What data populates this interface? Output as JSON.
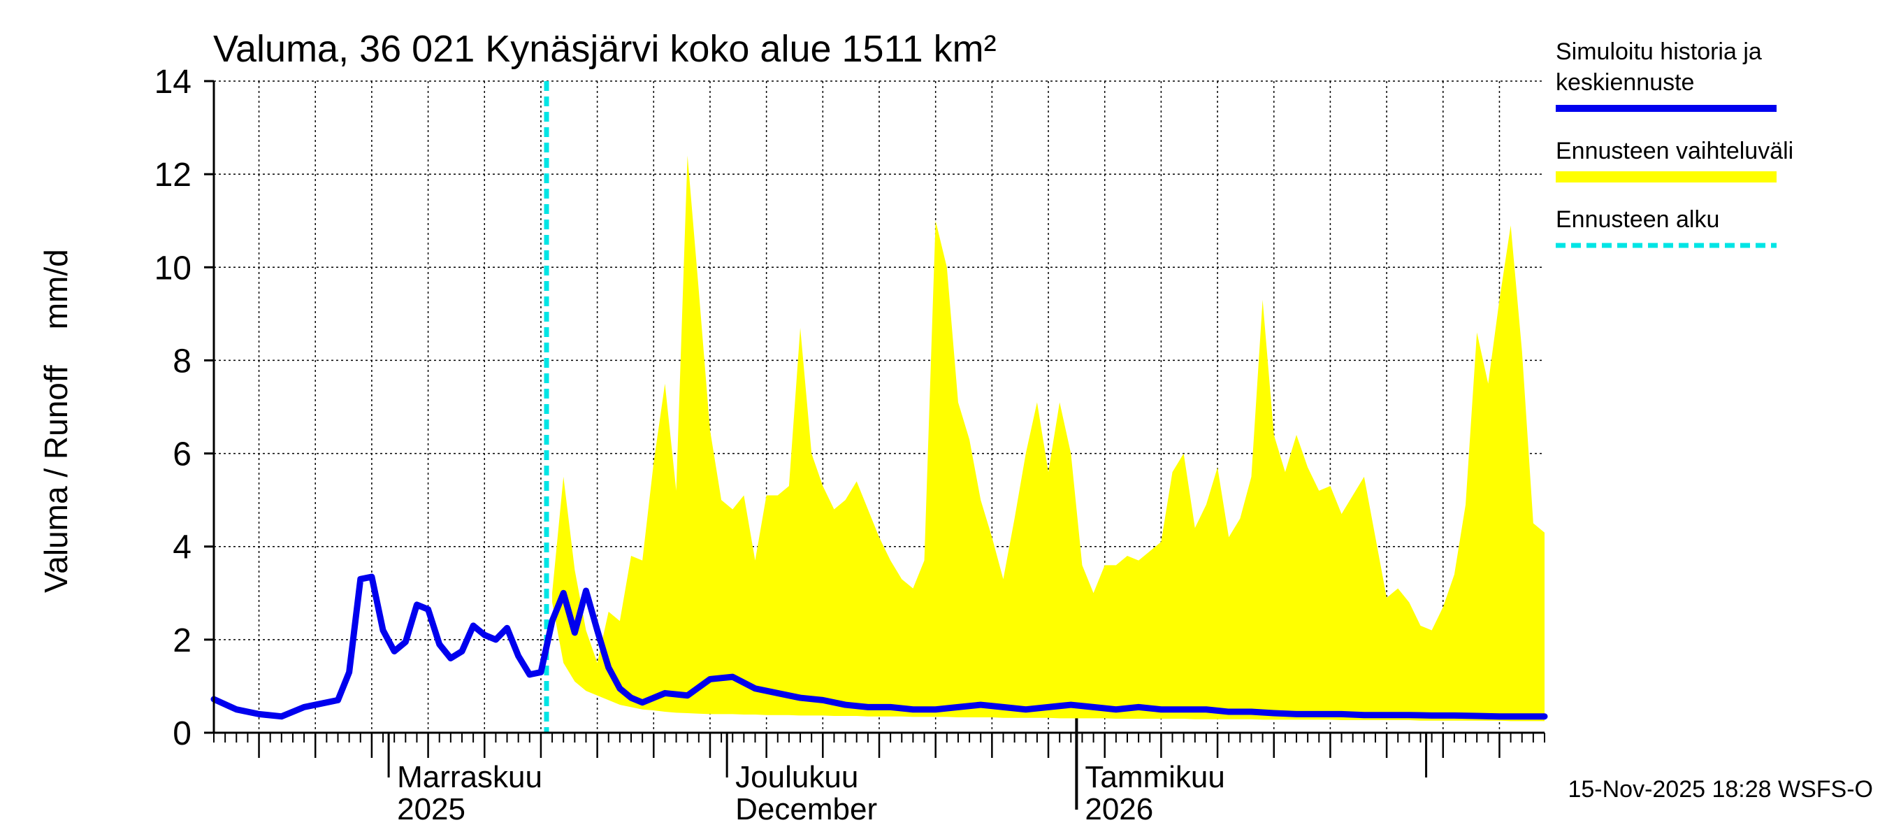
{
  "chart_data": {
    "type": "area",
    "title": "Valuma, 36 021 Kynäsjärvi koko alue 1511 km²",
    "ylabel": "Valuma / Runoff    mm/d",
    "xlabel": "",
    "ylim": [
      0,
      14
    ],
    "y_ticks": [
      0,
      2,
      4,
      6,
      8,
      10,
      12,
      14
    ],
    "y_tick_labels": [
      "0",
      "2",
      "4",
      "6",
      "8",
      "10",
      "12",
      "14"
    ],
    "grid": true,
    "x_range_days": [
      0,
      118
    ],
    "x_labels": [
      {
        "line1": "Marraskuu",
        "line2": "2025",
        "day": 15.5
      },
      {
        "line1": "Joulukuu",
        "line2": "December",
        "day": 45.5
      },
      {
        "line1": "Tammikuu",
        "line2": "2026",
        "day": 76.5
      }
    ],
    "month_boundaries_days": [
      15.5,
      45.5,
      76.5,
      107.5
    ],
    "year_boundary_day": 76.5,
    "forecast_start_day": 29.5,
    "series": [
      {
        "name": "Simuloitu historia ja keskiennuste",
        "color": "#0000ee",
        "x": [
          0,
          2,
          4,
          6,
          8,
          9,
          11,
          12,
          13,
          14,
          15,
          16,
          17,
          18,
          19,
          20,
          21,
          22,
          23,
          24,
          25,
          26,
          27,
          28,
          29,
          30,
          31,
          32,
          33,
          34,
          35,
          36,
          37,
          38,
          40,
          42,
          44,
          46,
          48,
          50,
          52,
          54,
          56,
          58,
          60,
          62,
          64,
          66,
          68,
          70,
          72,
          74,
          76,
          78,
          80,
          82,
          84,
          86,
          88,
          90,
          92,
          94,
          96,
          98,
          100,
          102,
          104,
          106,
          108,
          110,
          112,
          114,
          116,
          118
        ],
        "values": [
          0.72,
          0.5,
          0.4,
          0.35,
          0.55,
          0.6,
          0.7,
          1.3,
          3.3,
          3.35,
          2.2,
          1.75,
          1.95,
          2.75,
          2.65,
          1.9,
          1.6,
          1.75,
          2.3,
          2.1,
          2.0,
          2.25,
          1.65,
          1.25,
          1.3,
          2.4,
          3.0,
          2.15,
          3.05,
          2.2,
          1.4,
          0.95,
          0.75,
          0.65,
          0.85,
          0.8,
          1.15,
          1.2,
          0.95,
          0.85,
          0.75,
          0.7,
          0.6,
          0.55,
          0.55,
          0.5,
          0.5,
          0.55,
          0.6,
          0.55,
          0.5,
          0.55,
          0.6,
          0.55,
          0.5,
          0.55,
          0.5,
          0.5,
          0.5,
          0.45,
          0.45,
          0.42,
          0.4,
          0.4,
          0.4,
          0.38,
          0.38,
          0.38,
          0.37,
          0.37,
          0.36,
          0.35,
          0.35,
          0.35
        ]
      },
      {
        "name": "Ennusteen vaihteluväli",
        "color": "#ffff00",
        "x": [
          30,
          31,
          32,
          33,
          34,
          35,
          36,
          37,
          38,
          39,
          40,
          41,
          42,
          43,
          44,
          45,
          46,
          47,
          48,
          49,
          50,
          51,
          52,
          53,
          54,
          55,
          56,
          57,
          58,
          59,
          60,
          61,
          62,
          63,
          64,
          65,
          66,
          67,
          68,
          69,
          70,
          71,
          72,
          73,
          74,
          75,
          76,
          77,
          78,
          79,
          80,
          81,
          82,
          83,
          84,
          85,
          86,
          87,
          88,
          89,
          90,
          91,
          92,
          93,
          94,
          95,
          96,
          97,
          98,
          99,
          100,
          101,
          102,
          103,
          104,
          105,
          106,
          107,
          108,
          109,
          110,
          111,
          112,
          113,
          114,
          115,
          116,
          117,
          118
        ],
        "upper": [
          3.0,
          5.5,
          3.5,
          2.2,
          1.5,
          2.6,
          2.4,
          3.8,
          3.7,
          5.8,
          7.5,
          5.2,
          12.4,
          9.5,
          6.5,
          5.0,
          4.8,
          5.1,
          3.7,
          5.1,
          5.1,
          5.3,
          8.7,
          6.0,
          5.3,
          4.8,
          5.0,
          5.4,
          4.8,
          4.2,
          3.7,
          3.3,
          3.1,
          3.7,
          11.0,
          10.0,
          7.1,
          6.3,
          5.0,
          4.2,
          3.3,
          4.6,
          6.0,
          7.1,
          5.6,
          7.1,
          6.0,
          3.6,
          3.0,
          3.6,
          3.6,
          3.8,
          3.7,
          3.9,
          4.1,
          5.6,
          6.0,
          4.4,
          4.9,
          5.7,
          4.2,
          4.6,
          5.5,
          9.3,
          6.4,
          5.6,
          6.4,
          5.7,
          5.2,
          5.3,
          4.7,
          5.1,
          5.5,
          4.2,
          2.9,
          3.1,
          2.8,
          2.3,
          2.2,
          2.7,
          3.4,
          4.9,
          8.6,
          7.5,
          9.3,
          10.9,
          8.2,
          4.5,
          4.3
        ],
        "lower": [
          2.8,
          1.5,
          1.1,
          0.9,
          0.8,
          0.7,
          0.6,
          0.55,
          0.5,
          0.48,
          0.45,
          0.43,
          0.42,
          0.41,
          0.4,
          0.4,
          0.4,
          0.39,
          0.39,
          0.38,
          0.38,
          0.38,
          0.37,
          0.37,
          0.37,
          0.36,
          0.36,
          0.36,
          0.35,
          0.35,
          0.35,
          0.35,
          0.34,
          0.34,
          0.34,
          0.34,
          0.33,
          0.33,
          0.33,
          0.33,
          0.32,
          0.32,
          0.32,
          0.32,
          0.32,
          0.31,
          0.31,
          0.31,
          0.31,
          0.31,
          0.3,
          0.3,
          0.3,
          0.3,
          0.3,
          0.3,
          0.3,
          0.29,
          0.29,
          0.29,
          0.29,
          0.29,
          0.29,
          0.28,
          0.28,
          0.28,
          0.28,
          0.28,
          0.28,
          0.28,
          0.27,
          0.27,
          0.27,
          0.27,
          0.27,
          0.27,
          0.27,
          0.26,
          0.26,
          0.26,
          0.26,
          0.26,
          0.26,
          0.26,
          0.26,
          0.25,
          0.25,
          0.25,
          0.25
        ]
      }
    ],
    "legend": {
      "placement": "right",
      "items": [
        {
          "label_lines": [
            "Simuloitu historia ja",
            "keskiennuste"
          ],
          "color": "#0000ee",
          "style": "solid"
        },
        {
          "label_lines": [
            "Ennusteen vaihteluväli"
          ],
          "color": "#ffff00",
          "style": "solid"
        },
        {
          "label_lines": [
            "Ennusteen alku"
          ],
          "color": "#00e5e5",
          "style": "dashed"
        }
      ]
    },
    "footer": "15-Nov-2025 18:28 WSFS-O"
  }
}
